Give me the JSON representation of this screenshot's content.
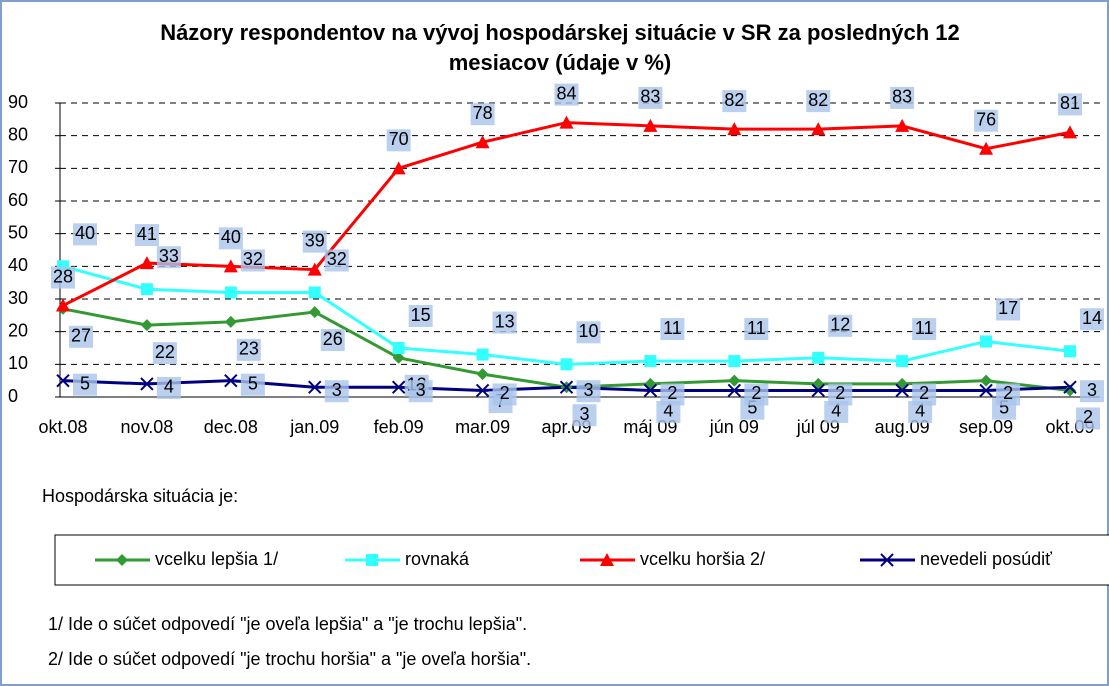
{
  "chart_data": {
    "type": "line",
    "title": "Názory respondentov na vývoj hospodárskej situácie v SR za posledných 12 mesiacov (údaje v %)",
    "categories": [
      "okt.08",
      "nov.08",
      "dec.08",
      "jan.09",
      "feb.09",
      "mar.09",
      "apr.09",
      "máj 09",
      "jún 09",
      "júl 09",
      "aug.09",
      "sep.09",
      "okt.09"
    ],
    "series": [
      {
        "name": "vcelku lepšia 1/",
        "color": "#339933",
        "marker": "diamond",
        "values": [
          27,
          22,
          23,
          26,
          12,
          7,
          3,
          4,
          5,
          4,
          4,
          5,
          2
        ]
      },
      {
        "name": "rovnaká",
        "color": "#33ffff",
        "marker": "square",
        "values": [
          40,
          33,
          32,
          32,
          15,
          13,
          10,
          11,
          11,
          12,
          11,
          17,
          14
        ]
      },
      {
        "name": "vcelku horšia 2/",
        "color": "#ff0000",
        "marker": "triangle",
        "values": [
          28,
          41,
          40,
          39,
          70,
          78,
          84,
          83,
          82,
          82,
          83,
          76,
          81
        ]
      },
      {
        "name": "nevedeli posúdiť",
        "color": "#000080",
        "marker": "x",
        "values": [
          5,
          4,
          5,
          3,
          3,
          2,
          3,
          2,
          2,
          2,
          2,
          2,
          3
        ]
      }
    ],
    "ylim": [
      0,
      90
    ],
    "yticks": [
      0,
      10,
      20,
      30,
      40,
      50,
      60,
      70,
      80,
      90
    ],
    "grid": true,
    "legend_title": "Hospodárska situácia je:",
    "notes": [
      "1/ Ide o súčet odpovedí \"je oveľa lepšia\" a \"je trochu lepšia\".",
      "2/ Ide o súčet odpovedí \"je trochu horšia\" a \"je oveľa horšia\"."
    ]
  }
}
